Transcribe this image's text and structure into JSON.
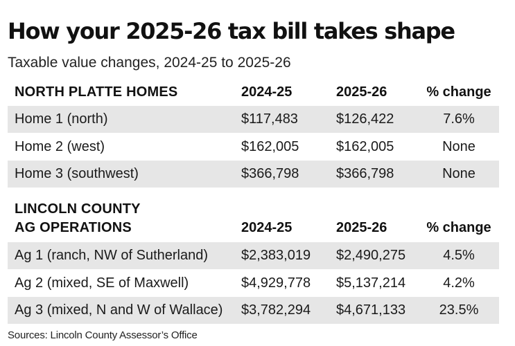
{
  "title": "How your 2025-26 tax bill takes shape",
  "subtitle": "Taxable value changes, 2024-25 to 2025-26",
  "source": "Sources: Lincoln County Assessor’s Office",
  "colors": {
    "row_shade": "#e6e6e6",
    "text": "#1a1a1a"
  },
  "chart_data": {
    "type": "table",
    "title": "How your 2025-26 tax bill takes shape",
    "subtitle": "Taxable value changes, 2024-25 to 2025-26",
    "sections": [
      {
        "header": [
          "NORTH PLATTE HOMES",
          "2024-25",
          "2025-26",
          "% change"
        ],
        "header_line1": "NORTH PLATTE HOMES",
        "rows": [
          [
            "Home 1 (north)",
            "$117,483",
            "$126,422",
            "7.6%"
          ],
          [
            "Home 2 (west)",
            "$162,005",
            "$162,005",
            "None"
          ],
          [
            "Home 3 (southwest)",
            "$366,798",
            "$366,798",
            "None"
          ]
        ]
      },
      {
        "header": [
          "LINCOLN COUNTY AG OPERATIONS",
          "2024-25",
          "2025-26",
          "% change"
        ],
        "header_line1": "LINCOLN COUNTY",
        "header_line2": "AG OPERATIONS",
        "rows": [
          [
            "Ag 1 (ranch, NW of Sutherland)",
            "$2,383,019",
            "$2,490,275",
            "4.5%"
          ],
          [
            "Ag 2 (mixed, SE of Maxwell)",
            "$4,929,778",
            "$5,137,214",
            "4.2%"
          ],
          [
            "Ag 3 (mixed, N and W of Wallace)",
            "$3,782,294",
            "$4,671,133",
            "23.5%"
          ]
        ]
      }
    ]
  }
}
